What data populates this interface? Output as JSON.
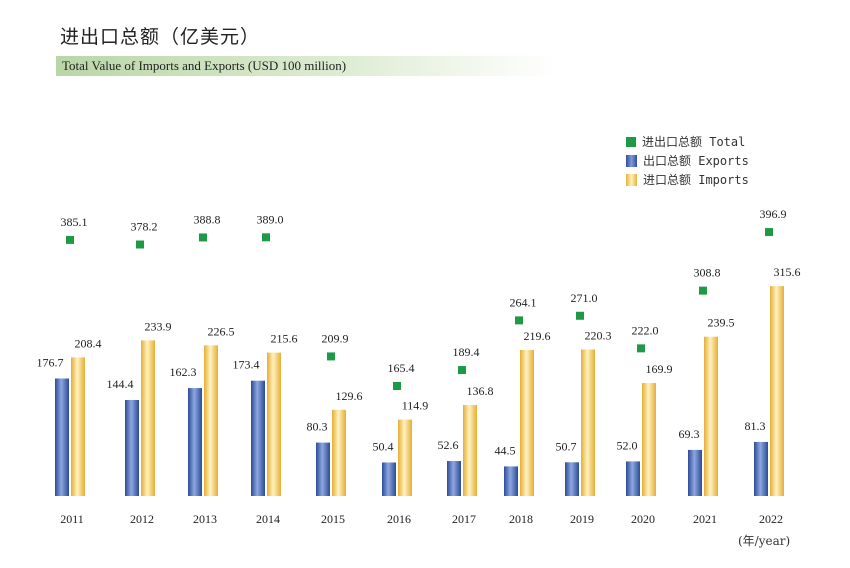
{
  "title_cn": "进出口总额（亿美元）",
  "title_en": "Total Value of Imports and Exports (USD 100 million)",
  "unit_label": "(年/year)",
  "legend": [
    {
      "key": "total",
      "label": "进出口总额 Total"
    },
    {
      "key": "exports",
      "label": "出口总额 Exports"
    },
    {
      "key": "imports",
      "label": "进口总额 Imports"
    }
  ],
  "colors": {
    "total": "#1e9a46",
    "exports": "#3f5fb0",
    "imports": "#f0c050"
  },
  "chart_data": {
    "type": "bar",
    "categories": [
      "2011",
      "2012",
      "2013",
      "2014",
      "2015",
      "2016",
      "2017",
      "2018",
      "2019",
      "2020",
      "2021",
      "2022"
    ],
    "series": [
      {
        "key": "exports",
        "name": "出口总额 Exports",
        "values": [
          176.7,
          144.4,
          162.3,
          173.4,
          80.3,
          50.4,
          52.6,
          44.5,
          50.7,
          52.0,
          69.3,
          81.3
        ]
      },
      {
        "key": "imports",
        "name": "进口总额 Imports",
        "values": [
          208.4,
          233.9,
          226.5,
          215.6,
          129.6,
          114.9,
          136.8,
          219.6,
          220.3,
          169.9,
          239.5,
          315.6
        ]
      },
      {
        "key": "total",
        "name": "进出口总额 Total",
        "values": [
          385.1,
          378.2,
          388.8,
          389.0,
          209.9,
          165.4,
          189.4,
          264.1,
          271.0,
          222.0,
          308.8,
          396.9
        ]
      }
    ],
    "ylim": [
      0,
      400
    ],
    "legend_position": "top-right",
    "grid": false
  }
}
